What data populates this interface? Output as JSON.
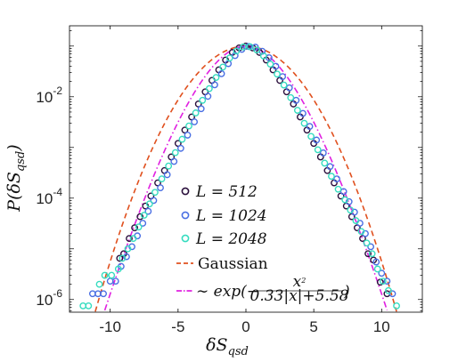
{
  "chart_data": {
    "type": "scatter",
    "title": "",
    "xlabel": "δS",
    "xlabel_sub": "qsd",
    "ylabel": "P(δS",
    "ylabel_sub": "qsd",
    "ylabel_close": ")",
    "xlim": [
      -13,
      13
    ],
    "ylim_log10": [
      -6.25,
      -0.6
    ],
    "yscale": "log",
    "x_ticks": [
      -10,
      -5,
      0,
      5,
      10
    ],
    "x_tick_labels": [
      "-10",
      "-5",
      "0",
      "5",
      "10"
    ],
    "y_ticks_log10": [
      -6,
      -4,
      -2
    ],
    "y_tick_labels": [
      {
        "base": "10",
        "exp": "-6"
      },
      {
        "base": "10",
        "exp": "-4"
      },
      {
        "base": "10",
        "exp": "-2"
      }
    ],
    "grid": false,
    "legend_position": "center-bottom",
    "series": [
      {
        "name": "L = 512",
        "marker": "circle",
        "color": "#2a0f3c",
        "x": [
          -9.3,
          -9.0,
          -8.6,
          -8.2,
          -7.8,
          -7.4,
          -7.0,
          -6.5,
          -6.0,
          -5.5,
          -5.0,
          -4.5,
          -4.0,
          -3.5,
          -3.0,
          -2.5,
          -2.0,
          -1.5,
          -1.0,
          -0.5,
          0.0,
          0.5,
          1.0,
          1.5,
          2.0,
          2.5,
          3.0,
          3.5,
          4.0,
          4.5,
          5.0,
          5.5,
          6.0,
          6.5,
          7.0,
          7.4,
          7.8,
          8.2,
          8.6,
          9.0,
          9.4,
          9.9,
          10.4
        ],
        "y": [
          6.5e-06,
          8e-06,
          1.6e-05,
          2.6e-05,
          4.3e-05,
          7e-05,
          0.00011,
          0.0002,
          0.00035,
          0.00065,
          0.0012,
          0.0022,
          0.004,
          0.0072,
          0.0125,
          0.021,
          0.034,
          0.053,
          0.075,
          0.092,
          0.1,
          0.092,
          0.075,
          0.053,
          0.034,
          0.021,
          0.0125,
          0.0072,
          0.004,
          0.0022,
          0.0012,
          0.00065,
          0.00035,
          0.0002,
          0.00011,
          7e-05,
          4.3e-05,
          2.6e-05,
          1.6e-05,
          8e-06,
          6e-06,
          2.2e-06,
          1.3e-06
        ]
      },
      {
        "name": "L = 1024",
        "marker": "circle",
        "color": "#4a6fe3",
        "x": [
          -11.3,
          -10.9,
          -10.5,
          -10.0,
          -9.6,
          -9.2,
          -8.8,
          -8.4,
          -8.0,
          -7.6,
          -7.2,
          -6.8,
          -6.3,
          -5.8,
          -5.3,
          -4.8,
          -4.3,
          -3.8,
          -3.3,
          -2.8,
          -2.3,
          -1.8,
          -1.3,
          -0.8,
          -0.3,
          0.2,
          0.7,
          1.2,
          1.7,
          2.2,
          2.7,
          3.2,
          3.7,
          4.2,
          4.7,
          5.2,
          5.7,
          6.2,
          6.7,
          7.2,
          7.6,
          8.0,
          8.4,
          8.8,
          9.2,
          9.6,
          10.0,
          10.4,
          10.8
        ],
        "y": [
          1.3e-06,
          1.3e-06,
          1.3e-06,
          2.3e-06,
          2.3e-06,
          4.5e-06,
          7e-06,
          1.1e-05,
          1.8e-05,
          3.2e-05,
          5.5e-05,
          9e-05,
          0.00016,
          0.00029,
          0.00053,
          0.00096,
          0.00175,
          0.0032,
          0.0058,
          0.0102,
          0.0172,
          0.0285,
          0.045,
          0.065,
          0.086,
          0.098,
          0.095,
          0.079,
          0.059,
          0.04,
          0.025,
          0.015,
          0.0085,
          0.0047,
          0.0026,
          0.0014,
          0.00078,
          0.00042,
          0.00024,
          0.000135,
          8.5e-05,
          5.3e-05,
          3.2e-05,
          2e-05,
          1.1e-05,
          5.5e-06,
          3.3e-06,
          2.3e-06,
          1.3e-06
        ]
      },
      {
        "name": "L = 2048",
        "marker": "circle",
        "color": "#35dcbf",
        "x": [
          -12.0,
          -11.6,
          -10.8,
          -10.4,
          -9.9,
          -9.4,
          -9.1,
          -8.7,
          -8.3,
          -7.9,
          -7.5,
          -7.1,
          -6.7,
          -6.2,
          -5.7,
          -5.2,
          -4.7,
          -4.2,
          -3.7,
          -3.2,
          -2.7,
          -2.2,
          -1.7,
          -1.2,
          -0.7,
          -0.2,
          0.3,
          0.8,
          1.3,
          1.8,
          2.3,
          2.8,
          3.3,
          3.8,
          4.3,
          4.8,
          5.3,
          5.8,
          6.3,
          6.8,
          7.3,
          7.7,
          8.1,
          8.5,
          8.9,
          9.3,
          9.7,
          10.1,
          10.5,
          11.1
        ],
        "y": [
          7.5e-07,
          7.5e-07,
          2e-06,
          3e-06,
          3e-06,
          4e-06,
          6.5e-06,
          1e-05,
          1.6e-05,
          2.7e-05,
          4.6e-05,
          7.7e-05,
          0.00013,
          0.00024,
          0.00043,
          0.00079,
          0.00145,
          0.00265,
          0.0048,
          0.0085,
          0.0145,
          0.024,
          0.0385,
          0.058,
          0.08,
          0.096,
          0.097,
          0.084,
          0.064,
          0.044,
          0.028,
          0.017,
          0.0096,
          0.0054,
          0.003,
          0.00165,
          0.0009,
          0.00049,
          0.00027,
          0.00015,
          9.3e-05,
          5.8e-05,
          3.6e-05,
          2.2e-05,
          1.3e-05,
          8e-06,
          4e-06,
          2.3e-06,
          1.5e-06,
          7.5e-07
        ]
      }
    ],
    "curves": [
      {
        "name": "Gaussian",
        "style": "dashed",
        "color": "#e0501e",
        "formula": "gaussian",
        "peak": 0.1,
        "sigma": 2.26
      },
      {
        "name": "~ exp(-x²/(0.33|x|+5.58))",
        "style": "dashdot",
        "color": "#e020e0",
        "formula": "stretched",
        "peak": 0.1,
        "a": 0.33,
        "b": 5.58
      }
    ],
    "legend": {
      "entries": [
        {
          "label": "L = 512"
        },
        {
          "label": "L = 1024"
        },
        {
          "label": "L = 2048"
        },
        {
          "label": "Gaussian"
        },
        {
          "prefix": "∼ exp(−",
          "num": "x",
          "num_sup": "2",
          "den": "0.33|x|+5.58",
          "suffix": ")"
        }
      ]
    }
  }
}
